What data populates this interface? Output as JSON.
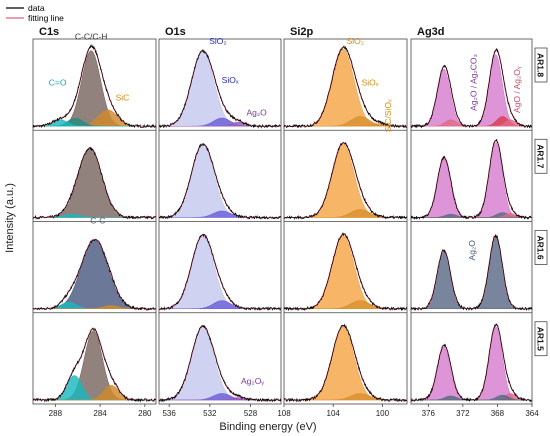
{
  "figure": {
    "ylabel": "Intensity (a.u.)",
    "xlabel": "Binding energy (eV)",
    "legend": [
      {
        "label": "data",
        "color": "#000000"
      },
      {
        "label": "fitting line",
        "color": "#e0607a"
      }
    ],
    "sample_labels": [
      "AR1.8",
      "AR1.7",
      "AR1.6",
      "AR1.5"
    ],
    "colors": {
      "fit_line": "#e0607a",
      "c_main": "#7a6660",
      "c_main_blue": "#4a5a80",
      "c_cyan": "#19b8c0",
      "c_teal": "#2a8c80",
      "c_sic": "#d08a2a",
      "o_main": "#c6c8ee",
      "o_blue": "#6a60d8",
      "o_purple": "#9a5ab8",
      "si_main": "#f4a545",
      "si_dark": "#d89030",
      "ag_main": "#d77ed0",
      "ag_slate": "#5a6a86",
      "ag_pink": "#e06a88",
      "ag_red": "#d84050",
      "ann_dark": "#333333",
      "ann_blue": "#2828b8",
      "ann_purple": "#7a3a9a",
      "ann_orange": "#d48a10",
      "ann_cyan": "#18a2b0",
      "ann_slate": "#4a5a78",
      "ann_pink": "#c05068"
    }
  },
  "chart_data": [
    {
      "type": "area",
      "title": "C1s",
      "xlim": [
        290,
        279
      ],
      "xticks": [
        288,
        284,
        280
      ],
      "rows": [
        {
          "sample": "AR1.8",
          "peaks": [
            {
              "name": "C-C/C-H",
              "center": 284.8,
              "fwhm": 2.0,
              "height": 0.93,
              "color": "c_main"
            },
            {
              "name": "SiC",
              "center": 283.3,
              "fwhm": 2.0,
              "height": 0.2,
              "color": "c_sic"
            },
            {
              "name": "C=O",
              "center": 287.6,
              "fwhm": 1.6,
              "height": 0.08,
              "color": "c_cyan"
            },
            {
              "name": "",
              "center": 286.2,
              "fwhm": 1.6,
              "height": 0.1,
              "color": "c_teal"
            }
          ]
        },
        {
          "sample": "AR1.7",
          "peaks": [
            {
              "name": "",
              "center": 284.9,
              "fwhm": 2.5,
              "height": 0.85,
              "color": "c_main"
            },
            {
              "name": "",
              "center": 286.5,
              "fwhm": 1.6,
              "height": 0.04,
              "color": "c_cyan"
            }
          ]
        },
        {
          "sample": "AR1.6",
          "peaks": [
            {
              "name": "C-C",
              "center": 284.5,
              "fwhm": 2.8,
              "height": 0.85,
              "color": "c_main_blue"
            },
            {
              "name": "",
              "center": 286.8,
              "fwhm": 1.6,
              "height": 0.08,
              "color": "c_cyan"
            },
            {
              "name": "",
              "center": 283.0,
              "fwhm": 1.6,
              "height": 0.04,
              "color": "c_sic"
            }
          ]
        },
        {
          "sample": "AR1.5",
          "peaks": [
            {
              "name": "",
              "center": 284.6,
              "fwhm": 1.9,
              "height": 0.85,
              "color": "c_main"
            },
            {
              "name": "",
              "center": 286.3,
              "fwhm": 1.6,
              "height": 0.3,
              "color": "c_cyan"
            },
            {
              "name": "",
              "center": 283.0,
              "fwhm": 1.6,
              "height": 0.18,
              "color": "c_sic"
            }
          ]
        }
      ],
      "annotations": [
        {
          "row": 0,
          "text": "C-C/C-H",
          "x": 284.8,
          "level": 1.07,
          "color": "ann_dark"
        },
        {
          "row": 0,
          "text": "C=O",
          "x": 287.8,
          "level": 0.5,
          "color": "ann_cyan"
        },
        {
          "row": 0,
          "text": "SiC",
          "x": 282.0,
          "level": 0.32,
          "color": "ann_orange"
        },
        {
          "row": 2,
          "text": "C-C",
          "x": 284.2,
          "level": 1.05,
          "color": "ann_slate"
        }
      ]
    },
    {
      "type": "area",
      "title": "O1s",
      "xlim": [
        537,
        525
      ],
      "xticks": [
        536,
        532,
        528
      ],
      "rows": [
        {
          "sample": "AR1.8",
          "peaks": [
            {
              "name": "SiO2",
              "center": 532.7,
              "fwhm": 2.6,
              "height": 0.92,
              "color": "o_main"
            },
            {
              "name": "SiOx",
              "center": 530.8,
              "fwhm": 2.0,
              "height": 0.1,
              "color": "o_blue"
            },
            {
              "name": "Ag2O",
              "center": 529.2,
              "fwhm": 1.6,
              "height": 0.05,
              "color": "o_purple"
            }
          ]
        },
        {
          "sample": "AR1.7",
          "peaks": [
            {
              "name": "",
              "center": 532.7,
              "fwhm": 2.6,
              "height": 0.9,
              "color": "o_main"
            },
            {
              "name": "",
              "center": 530.8,
              "fwhm": 2.0,
              "height": 0.08,
              "color": "o_blue"
            }
          ]
        },
        {
          "sample": "AR1.6",
          "peaks": [
            {
              "name": "",
              "center": 532.7,
              "fwhm": 2.6,
              "height": 0.9,
              "color": "o_main"
            },
            {
              "name": "",
              "center": 530.8,
              "fwhm": 2.0,
              "height": 0.1,
              "color": "o_blue"
            }
          ]
        },
        {
          "sample": "AR1.5",
          "peaks": [
            {
              "name": "",
              "center": 532.7,
              "fwhm": 2.6,
              "height": 0.9,
              "color": "o_main"
            },
            {
              "name": "",
              "center": 530.8,
              "fwhm": 2.0,
              "height": 0.08,
              "color": "o_blue"
            },
            {
              "name": "Ag2Oy",
              "center": 529.2,
              "fwhm": 1.6,
              "height": 0.03,
              "color": "o_purple"
            }
          ]
        }
      ],
      "annotations": [
        {
          "row": 0,
          "text": "SiO₂",
          "x": 531.2,
          "level": 1.01,
          "color": "ann_blue"
        },
        {
          "row": 0,
          "text": "SiOₓ",
          "x": 530.0,
          "level": 0.53,
          "color": "ann_blue"
        },
        {
          "row": 0,
          "text": "Ag₂O",
          "x": 527.4,
          "level": 0.13,
          "color": "ann_purple"
        },
        {
          "row": 3,
          "text": "Ag₂Oᵧ",
          "x": 527.8,
          "level": 0.2,
          "color": "ann_purple"
        }
      ]
    },
    {
      "type": "area",
      "title": "Si2p",
      "xlim": [
        108,
        98
      ],
      "xticks": [
        108,
        104,
        100
      ],
      "rows": [
        {
          "sample": "AR1.8",
          "peaks": [
            {
              "name": "SiO2",
              "center": 103.2,
              "fwhm": 2.1,
              "height": 0.95,
              "color": "si_main"
            },
            {
              "name": "SiOx",
              "center": 101.8,
              "fwhm": 1.8,
              "height": 0.12,
              "color": "si_dark"
            },
            {
              "name": "SiC/SiOx",
              "center": 100.3,
              "fwhm": 1.6,
              "height": 0.03,
              "color": "si_dark"
            }
          ]
        },
        {
          "sample": "AR1.7",
          "peaks": [
            {
              "name": "",
              "center": 103.2,
              "fwhm": 2.1,
              "height": 0.9,
              "color": "si_main"
            },
            {
              "name": "",
              "center": 101.8,
              "fwhm": 1.8,
              "height": 0.1,
              "color": "si_dark"
            }
          ]
        },
        {
          "sample": "AR1.6",
          "peaks": [
            {
              "name": "",
              "center": 103.2,
              "fwhm": 2.1,
              "height": 0.9,
              "color": "si_main"
            },
            {
              "name": "",
              "center": 101.8,
              "fwhm": 1.8,
              "height": 0.1,
              "color": "si_dark"
            }
          ]
        },
        {
          "sample": "AR1.5",
          "peaks": [
            {
              "name": "",
              "center": 103.2,
              "fwhm": 2.1,
              "height": 0.9,
              "color": "si_main"
            },
            {
              "name": "",
              "center": 101.8,
              "fwhm": 1.8,
              "height": 0.08,
              "color": "si_dark"
            }
          ]
        }
      ],
      "annotations": [
        {
          "row": 0,
          "text": "SiO₂",
          "x": 102.2,
          "level": 1.01,
          "color": "ann_orange"
        },
        {
          "row": 0,
          "text": "SiOₓ",
          "x": 101.0,
          "level": 0.5,
          "color": "ann_orange"
        }
      ],
      "rotated_annotations": [
        {
          "row": 0,
          "text": "SiC/SiOₓ",
          "x": 99.3,
          "level": 0.13,
          "color": "ann_orange"
        }
      ]
    },
    {
      "type": "area",
      "title": "Ag3d",
      "xlim": [
        378,
        364
      ],
      "xticks": [
        376,
        372,
        368,
        364
      ],
      "rows": [
        {
          "sample": "AR1.8",
          "peaks": [
            {
              "name": "",
              "center": 374.2,
              "fwhm": 1.8,
              "height": 0.7,
              "color": "ag_main"
            },
            {
              "name": "",
              "center": 368.2,
              "fwhm": 1.8,
              "height": 0.88,
              "color": "ag_main"
            },
            {
              "name": "",
              "center": 373.4,
              "fwhm": 1.6,
              "height": 0.08,
              "color": "ag_pink"
            },
            {
              "name": "",
              "center": 367.4,
              "fwhm": 1.6,
              "height": 0.12,
              "color": "ag_red"
            },
            {
              "name": "",
              "center": 366.5,
              "fwhm": 1.4,
              "height": 0.08,
              "color": "ag_pink"
            }
          ]
        },
        {
          "sample": "AR1.7",
          "peaks": [
            {
              "name": "",
              "center": 374.2,
              "fwhm": 1.8,
              "height": 0.72,
              "color": "ag_main"
            },
            {
              "name": "",
              "center": 368.2,
              "fwhm": 1.8,
              "height": 0.92,
              "color": "ag_main"
            },
            {
              "name": "",
              "center": 373.4,
              "fwhm": 1.6,
              "height": 0.04,
              "color": "ag_slate"
            },
            {
              "name": "",
              "center": 367.4,
              "fwhm": 1.6,
              "height": 0.06,
              "color": "ag_slate"
            },
            {
              "name": "",
              "center": 366.5,
              "fwhm": 1.4,
              "height": 0.05,
              "color": "ag_pink"
            }
          ]
        },
        {
          "sample": "AR1.6",
          "peaks": [
            {
              "name": "Ag2O",
              "center": 374.2,
              "fwhm": 1.8,
              "height": 0.72,
              "color": "ag_slate"
            },
            {
              "name": "",
              "center": 368.2,
              "fwhm": 1.8,
              "height": 0.9,
              "color": "ag_slate"
            }
          ]
        },
        {
          "sample": "AR1.5",
          "peaks": [
            {
              "name": "",
              "center": 374.2,
              "fwhm": 1.8,
              "height": 0.65,
              "color": "ag_main"
            },
            {
              "name": "",
              "center": 368.2,
              "fwhm": 1.8,
              "height": 0.9,
              "color": "ag_main"
            },
            {
              "name": "",
              "center": 373.4,
              "fwhm": 1.6,
              "height": 0.05,
              "color": "ag_slate"
            },
            {
              "name": "",
              "center": 367.4,
              "fwhm": 1.6,
              "height": 0.06,
              "color": "ag_slate"
            },
            {
              "name": "",
              "center": 366.5,
              "fwhm": 1.4,
              "height": 0.08,
              "color": "ag_pink"
            }
          ]
        }
      ],
      "rotated_annotations": [
        {
          "row": 0,
          "text": "Ag₂O / Ag₂CO₃",
          "x": 370.4,
          "level": 0.54,
          "color": "ann_purple"
        },
        {
          "row": 0,
          "text": "AgO / Ag₂Oᵧ",
          "x": 365.4,
          "level": 0.45,
          "color": "ann_pink"
        },
        {
          "row": 2,
          "text": "Ag₂O",
          "x": 370.6,
          "level": 0.72,
          "color": "ann_slate"
        }
      ]
    }
  ]
}
